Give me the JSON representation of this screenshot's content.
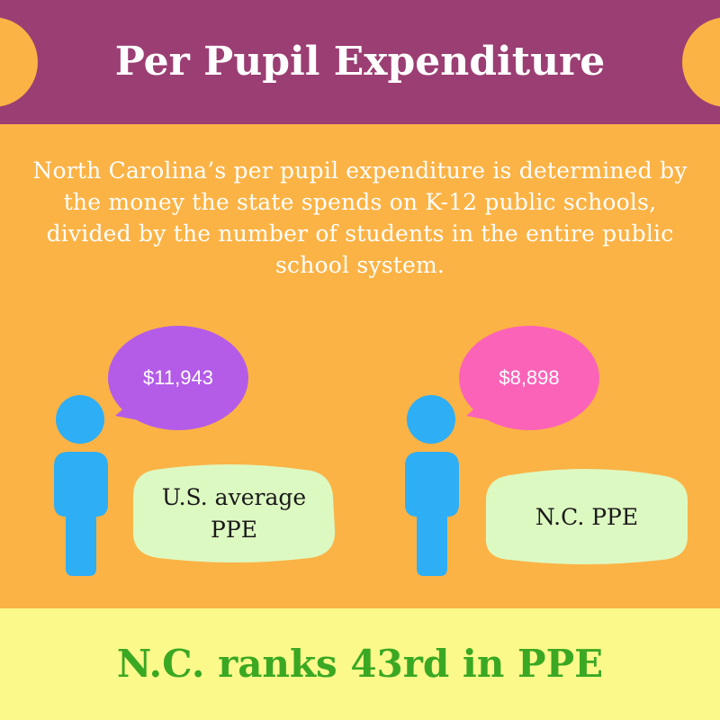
{
  "header": {
    "title": "Per Pupil Expenditure",
    "bg_color": "#9b3e73"
  },
  "description": "North Carolina’s per pupil expenditure is determined by the money the state spends on K-12 public schools, divided by the number of students in the entire public school system.",
  "comparisons": [
    {
      "amount": "$11,943",
      "label_line1": "U.S. average",
      "label_line2": "PPE",
      "bubble_color": "#b45ce8",
      "person_icon": "person-icon"
    },
    {
      "amount": "$8,898",
      "label": "N.C. PPE",
      "bubble_color": "#fb63b8",
      "person_icon": "person-icon"
    }
  ],
  "footer": {
    "text": "N.C. ranks 43rd in PPE",
    "bg_color": "#fbf98a",
    "text_color": "#3aa823"
  },
  "colors": {
    "background": "#fbb345",
    "person": "#2eaef5",
    "label_box": "#ddf9c2"
  }
}
